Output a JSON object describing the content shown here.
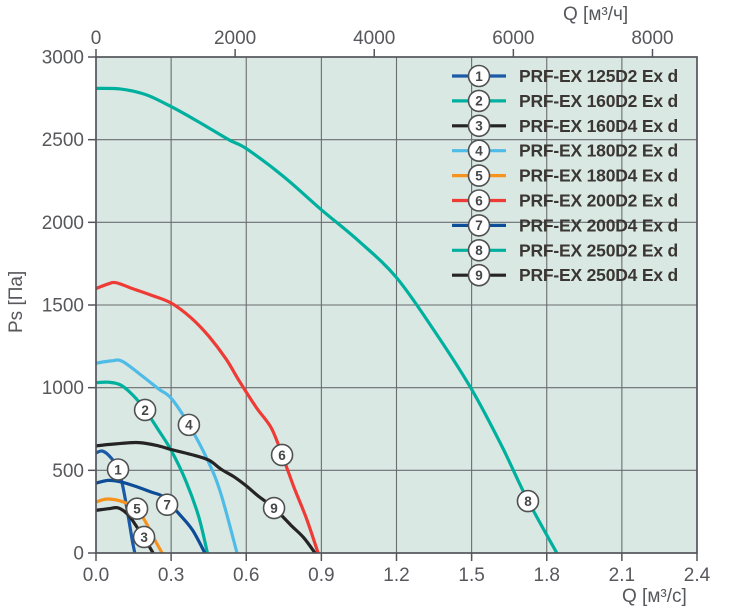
{
  "chart_data": {
    "type": "line",
    "title": "",
    "grid": true,
    "legend_position": "top-right-inside",
    "colors": {
      "plot_bg": "#d9e8e3",
      "grid": "#6a6c6f",
      "frame": "#53555a",
      "tick_text": "#57585c",
      "legend_text": "#3a3633",
      "marker_fill": "#ffffff",
      "marker_stroke": "#4f5052",
      "marker_text": "#454648"
    },
    "x_axis_bottom": {
      "label": "Q [м³/с]",
      "min": 0,
      "max": 2.4,
      "tick_values": [
        0,
        0.3,
        0.6,
        0.9,
        1.2,
        1.5,
        1.8,
        2.1,
        2.4
      ],
      "tick_labels": [
        "0.0",
        "0.3",
        "0.6",
        "0.9",
        "1.2",
        "1.5",
        "1.8",
        "2.1",
        "2.4"
      ]
    },
    "x_axis_top": {
      "label": "Q [м³/ч]",
      "units_per_bottom_unit": 3600,
      "tick_values": [
        0,
        2000,
        4000,
        6000,
        8000
      ],
      "tick_labels": [
        "0",
        "2000",
        "4000",
        "6000",
        "8000"
      ]
    },
    "y_axis": {
      "label": "Ps [Па]",
      "min": 0,
      "max": 3000,
      "tick_values": [
        0,
        500,
        1000,
        1500,
        2000,
        2500,
        3000
      ],
      "tick_labels": [
        "0",
        "500",
        "1000",
        "1500",
        "2000",
        "2500",
        "3000"
      ]
    },
    "series": [
      {
        "number": "1",
        "name": "PRF-EX 125D2 Ex d",
        "color": "#1b5aa6",
        "marker_at": [
          0.088,
          505
        ],
        "points": [
          [
            0,
            605
          ],
          [
            0.024,
            617
          ],
          [
            0.05,
            592
          ],
          [
            0.08,
            532
          ],
          [
            0.104,
            425
          ],
          [
            0.125,
            255
          ],
          [
            0.145,
            75
          ],
          [
            0.155,
            0
          ]
        ]
      },
      {
        "number": "2",
        "name": "PRF-EX 160D2 Ex d",
        "color": "#00b09e",
        "marker_at": [
          0.196,
          865
        ],
        "points": [
          [
            0,
            1030
          ],
          [
            0.05,
            1033
          ],
          [
            0.1,
            1015
          ],
          [
            0.15,
            950
          ],
          [
            0.196,
            866
          ],
          [
            0.25,
            742
          ],
          [
            0.3,
            622
          ],
          [
            0.36,
            432
          ],
          [
            0.41,
            220
          ],
          [
            0.445,
            0
          ]
        ]
      },
      {
        "number": "3",
        "name": "PRF-EX 160D4 Ex d",
        "color": "#262324",
        "marker_at": [
          0.192,
          97
        ],
        "points": [
          [
            0,
            258
          ],
          [
            0.05,
            268
          ],
          [
            0.09,
            272
          ],
          [
            0.13,
            228
          ],
          [
            0.17,
            142
          ],
          [
            0.2,
            72
          ],
          [
            0.228,
            0
          ]
        ]
      },
      {
        "number": "4",
        "name": "PRF-EX 180D2 Ex d",
        "color": "#4fbbe7",
        "marker_at": [
          0.371,
          775
        ],
        "points": [
          [
            0,
            1148
          ],
          [
            0.06,
            1162
          ],
          [
            0.104,
            1160
          ],
          [
            0.18,
            1076
          ],
          [
            0.25,
            992
          ],
          [
            0.3,
            936
          ],
          [
            0.371,
            776
          ],
          [
            0.45,
            548
          ],
          [
            0.5,
            352
          ],
          [
            0.563,
            0
          ]
        ]
      },
      {
        "number": "5",
        "name": "PRF-EX 180D4 Ex d",
        "color": "#f6921e",
        "marker_at": [
          0.164,
          268
        ],
        "points": [
          [
            0,
            308
          ],
          [
            0.04,
            326
          ],
          [
            0.09,
            318
          ],
          [
            0.13,
            296
          ],
          [
            0.164,
            268
          ],
          [
            0.2,
            182
          ],
          [
            0.23,
            92
          ],
          [
            0.264,
            0
          ]
        ]
      },
      {
        "number": "6",
        "name": "PRF-EX 200D2 Ex d",
        "color": "#ee3b35",
        "marker_at": [
          0.743,
          593
        ],
        "points": [
          [
            0,
            1600
          ],
          [
            0.05,
            1628
          ],
          [
            0.08,
            1635
          ],
          [
            0.15,
            1597
          ],
          [
            0.22,
            1560
          ],
          [
            0.3,
            1512
          ],
          [
            0.38,
            1422
          ],
          [
            0.45,
            1312
          ],
          [
            0.52,
            1172
          ],
          [
            0.57,
            1046
          ],
          [
            0.64,
            880
          ],
          [
            0.7,
            756
          ],
          [
            0.743,
            594
          ],
          [
            0.79,
            400
          ],
          [
            0.84,
            210
          ],
          [
            0.887,
            0
          ]
        ]
      },
      {
        "number": "7",
        "name": "PRF-EX 200D4 Ex d",
        "color": "#0d4c96",
        "marker_at": [
          0.284,
          292
        ],
        "points": [
          [
            0,
            423
          ],
          [
            0.05,
            439
          ],
          [
            0.1,
            430
          ],
          [
            0.16,
            402
          ],
          [
            0.22,
            369
          ],
          [
            0.27,
            340
          ],
          [
            0.31,
            272
          ],
          [
            0.335,
            231
          ],
          [
            0.385,
            140
          ],
          [
            0.435,
            0
          ]
        ]
      },
      {
        "number": "8",
        "name": "PRF-EX 250D2 Ex d",
        "color": "#00b09e",
        "marker_at": [
          1.725,
          314
        ],
        "points": [
          [
            0,
            2810
          ],
          [
            0.1,
            2806
          ],
          [
            0.2,
            2772
          ],
          [
            0.3,
            2700
          ],
          [
            0.4,
            2616
          ],
          [
            0.53,
            2500
          ],
          [
            0.6,
            2446
          ],
          [
            0.75,
            2276
          ],
          [
            0.9,
            2076
          ],
          [
            1.05,
            1886
          ],
          [
            1.2,
            1666
          ],
          [
            1.35,
            1346
          ],
          [
            1.5,
            990
          ],
          [
            1.62,
            648
          ],
          [
            1.72,
            332
          ],
          [
            1.84,
            0
          ]
        ]
      },
      {
        "number": "9",
        "name": "PRF-EX 250D4 Ex d",
        "color": "#262324",
        "marker_at": [
          0.711,
          272
        ],
        "points": [
          [
            0,
            648
          ],
          [
            0.08,
            660
          ],
          [
            0.17,
            668
          ],
          [
            0.25,
            648
          ],
          [
            0.3,
            626
          ],
          [
            0.38,
            596
          ],
          [
            0.45,
            562
          ],
          [
            0.5,
            506
          ],
          [
            0.55,
            462
          ],
          [
            0.6,
            406
          ],
          [
            0.65,
            342
          ],
          [
            0.711,
            272
          ],
          [
            0.78,
            166
          ],
          [
            0.83,
            92
          ],
          [
            0.875,
            0
          ]
        ]
      }
    ]
  }
}
